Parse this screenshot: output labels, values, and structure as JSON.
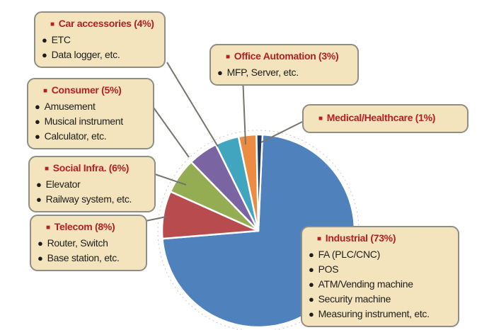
{
  "palette": {
    "callout_bg": "#f3e4bd",
    "callout_border": "#8e8e85",
    "title_red": "#b41e27",
    "body_text": "#1d1d1b",
    "leader_line": "#75756e",
    "pie_outline": "#c8c8c4",
    "slice_gap": "#ffffff"
  },
  "chart_data": {
    "type": "pie",
    "direction": "clockwise",
    "start_angle_deg": 2.5,
    "center": [
      365,
      326
    ],
    "radius": 136,
    "legend_position": "callout-boxes",
    "slices": [
      {
        "label": "Industrial",
        "value": 73,
        "color": "#4f81bd"
      },
      {
        "label": "Telecom",
        "value": 8,
        "color": "#b84b4e"
      },
      {
        "label": "Social Infra.",
        "value": 6,
        "color": "#94ad53"
      },
      {
        "label": "Consumer",
        "value": 5,
        "color": "#7a64a2"
      },
      {
        "label": "Car accessories",
        "value": 4,
        "color": "#41a5bf"
      },
      {
        "label": "Office Automation",
        "value": 3,
        "color": "#ec8b42"
      },
      {
        "label": "Medical/Healthcare",
        "value": 1,
        "color": "#20395c"
      }
    ]
  },
  "callouts": [
    {
      "title": "Car accessories (4%)",
      "items": [
        "ETC",
        "Data logger, etc."
      ]
    },
    {
      "title": "Office Automation (3%)",
      "items": [
        "MFP, Server, etc."
      ]
    },
    {
      "title": "Consumer (5%)",
      "items": [
        "Amusement",
        "Musical instrument",
        "Calculator, etc."
      ]
    },
    {
      "title": "Medical/Healthcare (1%)",
      "items": []
    },
    {
      "title": "Social Infra. (6%)",
      "items": [
        "Elevator",
        "Railway system, etc."
      ]
    },
    {
      "title": "Telecom (8%)",
      "items": [
        "Router, Switch",
        "Base station, etc."
      ]
    },
    {
      "title": "Industrial (73%)",
      "items": [
        "FA (PLC/CNC)",
        "POS",
        "ATM/Vending machine",
        "Security machine",
        "Measuring instrument, etc."
      ]
    }
  ]
}
